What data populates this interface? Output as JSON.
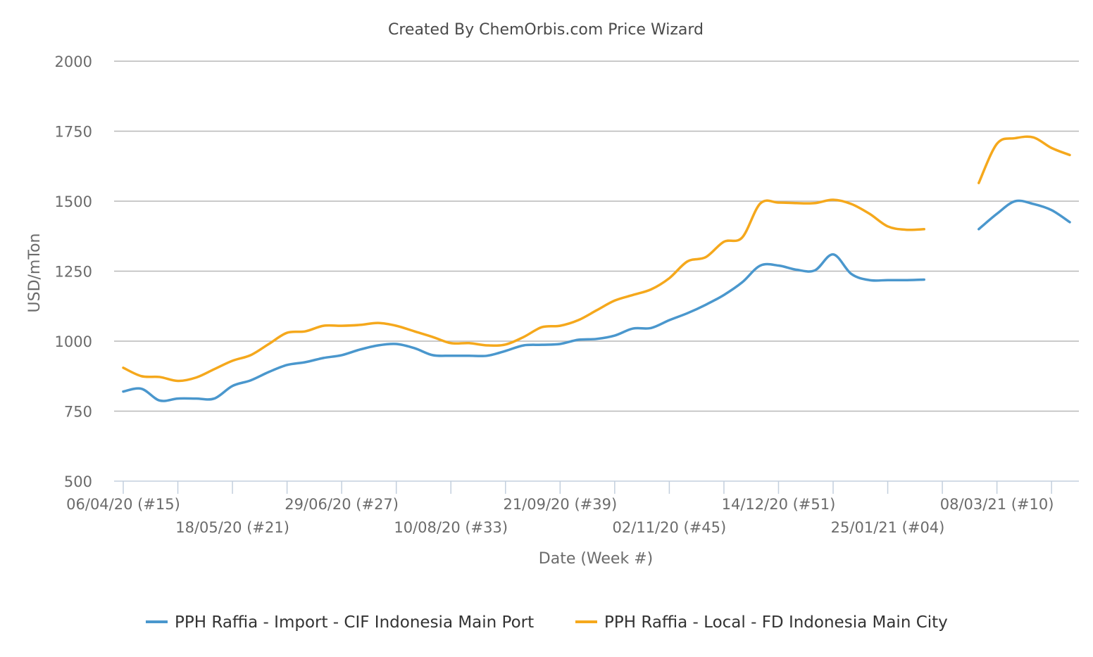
{
  "chart_data": {
    "type": "line",
    "title": "Created By ChemOrbis.com Price Wizard",
    "xlabel": "Date (Week #)",
    "ylabel": "USD/mTon",
    "ylim": [
      500,
      2000
    ],
    "yticks": [
      500,
      750,
      1000,
      1250,
      1500,
      1750,
      2000
    ],
    "grid": true,
    "legend_position": "bottom",
    "x_week_index_range": [
      0,
      52
    ],
    "x_tick_labels": [
      {
        "index": 0,
        "label": "06/04/20 (#15)",
        "row": 1
      },
      {
        "index": 6,
        "label": "18/05/20 (#21)",
        "row": 2
      },
      {
        "index": 12,
        "label": "29/06/20 (#27)",
        "row": 1
      },
      {
        "index": 18,
        "label": "10/08/20 (#33)",
        "row": 2
      },
      {
        "index": 24,
        "label": "21/09/20 (#39)",
        "row": 1
      },
      {
        "index": 30,
        "label": "02/11/20 (#45)",
        "row": 2
      },
      {
        "index": 36,
        "label": "14/12/20 (#51)",
        "row": 1
      },
      {
        "index": 42,
        "label": "25/01/21 (#04)",
        "row": 2
      },
      {
        "index": 48,
        "label": "08/03/21 (#10)",
        "row": 1
      }
    ],
    "x_minor_ticks": [
      0,
      3,
      6,
      9,
      12,
      15,
      18,
      21,
      24,
      27,
      30,
      33,
      36,
      39,
      42,
      45,
      48,
      51
    ],
    "series": [
      {
        "name": "PPH Raffia - Import - CIF Indonesia Main Port",
        "color": "#4a97cd",
        "values": [
          820,
          830,
          788,
          795,
          795,
          795,
          840,
          860,
          890,
          915,
          925,
          940,
          950,
          970,
          985,
          990,
          975,
          950,
          948,
          948,
          948,
          965,
          985,
          987,
          990,
          1005,
          1008,
          1020,
          1045,
          1047,
          1075,
          1100,
          1130,
          1165,
          1210,
          1270,
          1270,
          1255,
          1253,
          1310,
          1240,
          1218,
          1218,
          1218,
          1220,
          null,
          null,
          1400,
          1455,
          1500,
          1490,
          1468,
          1425
        ]
      },
      {
        "name": "PPH Raffia - Local - FD Indonesia Main City",
        "color": "#f5a81c",
        "values": [
          905,
          875,
          872,
          858,
          870,
          900,
          930,
          950,
          990,
          1030,
          1035,
          1055,
          1055,
          1058,
          1065,
          1055,
          1035,
          1015,
          993,
          993,
          985,
          988,
          1015,
          1050,
          1055,
          1075,
          1110,
          1145,
          1165,
          1185,
          1225,
          1285,
          1300,
          1355,
          1370,
          1492,
          1495,
          1493,
          1493,
          1505,
          1490,
          1455,
          1410,
          1398,
          1400,
          null,
          null,
          1565,
          1705,
          1725,
          1728,
          1690,
          1665
        ]
      }
    ]
  }
}
